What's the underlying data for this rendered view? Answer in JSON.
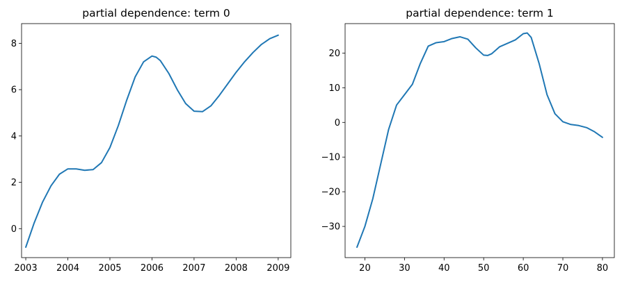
{
  "chart_data": [
    {
      "type": "line",
      "title": "partial dependence: term 0",
      "xlabel": "",
      "ylabel": "",
      "xlim": [
        2002.9,
        2009.3
      ],
      "ylim": [
        -1.25,
        8.85
      ],
      "x_ticks": [
        2003,
        2004,
        2005,
        2006,
        2007,
        2008,
        2009
      ],
      "y_ticks": [
        0,
        2,
        4,
        6,
        8
      ],
      "series": [
        {
          "color": "#1f77b4",
          "x": [
            2003.0,
            2003.2,
            2003.4,
            2003.6,
            2003.8,
            2004.0,
            2004.2,
            2004.4,
            2004.6,
            2004.8,
            2005.0,
            2005.2,
            2005.4,
            2005.6,
            2005.8,
            2006.0,
            2006.1,
            2006.2,
            2006.4,
            2006.6,
            2006.8,
            2007.0,
            2007.2,
            2007.4,
            2007.6,
            2007.8,
            2008.0,
            2008.2,
            2008.4,
            2008.6,
            2008.8,
            2009.0
          ],
          "y": [
            -0.8,
            0.25,
            1.15,
            1.85,
            2.35,
            2.58,
            2.58,
            2.52,
            2.55,
            2.85,
            3.5,
            4.45,
            5.55,
            6.55,
            7.2,
            7.45,
            7.4,
            7.25,
            6.7,
            6.0,
            5.4,
            5.07,
            5.05,
            5.3,
            5.75,
            6.25,
            6.75,
            7.2,
            7.6,
            7.95,
            8.2,
            8.35
          ]
        }
      ]
    },
    {
      "type": "line",
      "title": "partial dependence: term 1",
      "xlabel": "",
      "ylabel": "",
      "xlim": [
        15,
        83
      ],
      "ylim": [
        -39,
        28.5
      ],
      "x_ticks": [
        20,
        30,
        40,
        50,
        60,
        70,
        80
      ],
      "y_ticks": [
        -30,
        -20,
        -10,
        0,
        10,
        20
      ],
      "y_tick_labels": [
        "−30",
        "−20",
        "−10",
        "0",
        "10",
        "20"
      ],
      "series": [
        {
          "color": "#1f77b4",
          "x": [
            18,
            20,
            22,
            24,
            26,
            28,
            30,
            32,
            34,
            36,
            38,
            40,
            42,
            44,
            46,
            48,
            50,
            51,
            52,
            54,
            56,
            58,
            60,
            61,
            62,
            64,
            66,
            68,
            70,
            72,
            74,
            76,
            78,
            80
          ],
          "y": [
            -36,
            -30,
            -22,
            -12,
            -2,
            5,
            8,
            11,
            17,
            22,
            23,
            23.3,
            24.2,
            24.7,
            24,
            21.5,
            19.4,
            19.3,
            19.8,
            21.8,
            22.8,
            23.8,
            25.6,
            25.8,
            24.5,
            17,
            8,
            2.5,
            0.2,
            -0.6,
            -0.9,
            -1.5,
            -2.7,
            -4.3
          ]
        }
      ]
    }
  ]
}
